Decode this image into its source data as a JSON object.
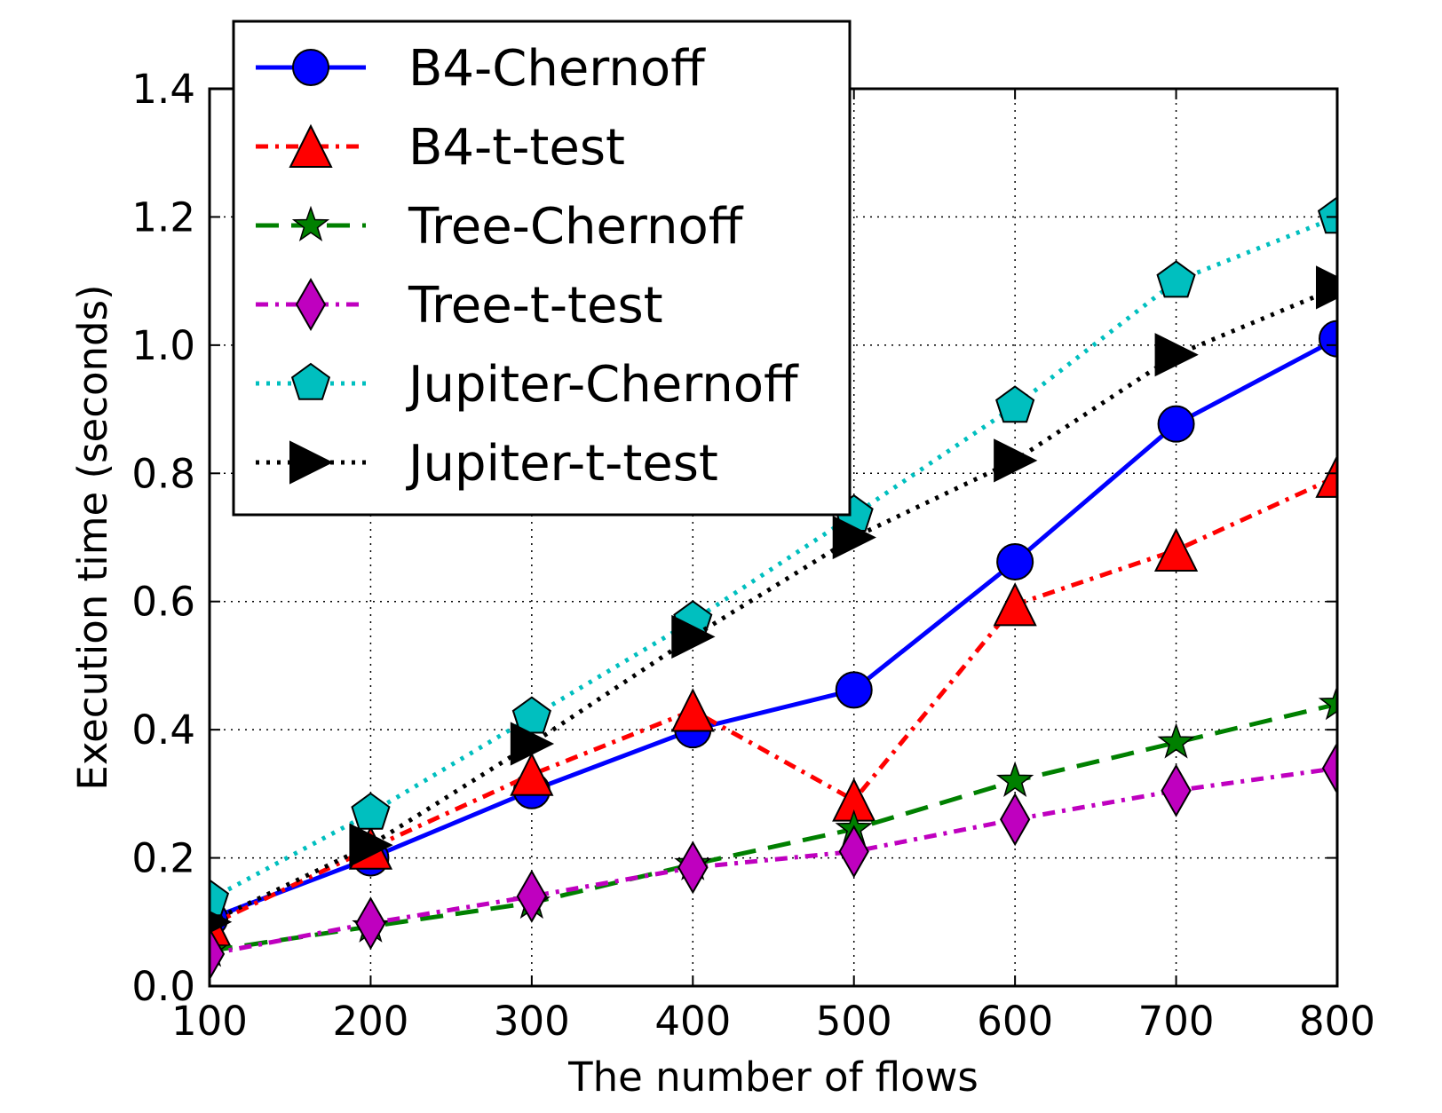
{
  "chart_data": {
    "type": "line",
    "title": "",
    "xlabel": "The number of flows",
    "ylabel": "Execution time (seconds)",
    "xlim": [
      100,
      800
    ],
    "ylim": [
      0.0,
      1.4
    ],
    "xticks": [
      "100",
      "200",
      "300",
      "400",
      "500",
      "600",
      "700",
      "800"
    ],
    "yticks": [
      "0.0",
      "0.2",
      "0.4",
      "0.6",
      "0.8",
      "1.0",
      "1.2",
      "1.4"
    ],
    "grid": true,
    "legend_position": "top-left",
    "x": [
      100,
      200,
      300,
      400,
      500,
      600,
      700,
      800
    ],
    "series": [
      {
        "name": "B4-Chernoff",
        "values": [
          0.105,
          0.2,
          0.305,
          0.4,
          0.462,
          0.662,
          0.877,
          1.01
        ],
        "color": "#0000ff",
        "linestyle": "solid",
        "marker": "circle"
      },
      {
        "name": "B4-t-test",
        "values": [
          0.095,
          0.215,
          0.33,
          0.43,
          0.29,
          0.595,
          0.68,
          0.795
        ],
        "color": "#ff0000",
        "linestyle": "dashdot",
        "marker": "triangle-up"
      },
      {
        "name": "Tree-Chernoff",
        "values": [
          0.055,
          0.093,
          0.13,
          0.19,
          0.245,
          0.32,
          0.38,
          0.44
        ],
        "color": "#008000",
        "linestyle": "dashed",
        "marker": "star"
      },
      {
        "name": "Tree-t-test",
        "values": [
          0.05,
          0.098,
          0.14,
          0.185,
          0.21,
          0.26,
          0.305,
          0.34
        ],
        "color": "#bf00bf",
        "linestyle": "dashdot",
        "marker": "thin-diamond"
      },
      {
        "name": "Jupiter-Chernoff",
        "values": [
          0.135,
          0.27,
          0.42,
          0.57,
          0.735,
          0.905,
          1.1,
          1.2
        ],
        "color": "#00bfbf",
        "linestyle": "dotted",
        "marker": "pentagon"
      },
      {
        "name": "Jupiter-t-test",
        "values": [
          0.1,
          0.22,
          0.378,
          0.545,
          0.7,
          0.82,
          0.985,
          1.09
        ],
        "color": "#000000",
        "linestyle": "dotted",
        "marker": "triangle-right"
      }
    ]
  }
}
